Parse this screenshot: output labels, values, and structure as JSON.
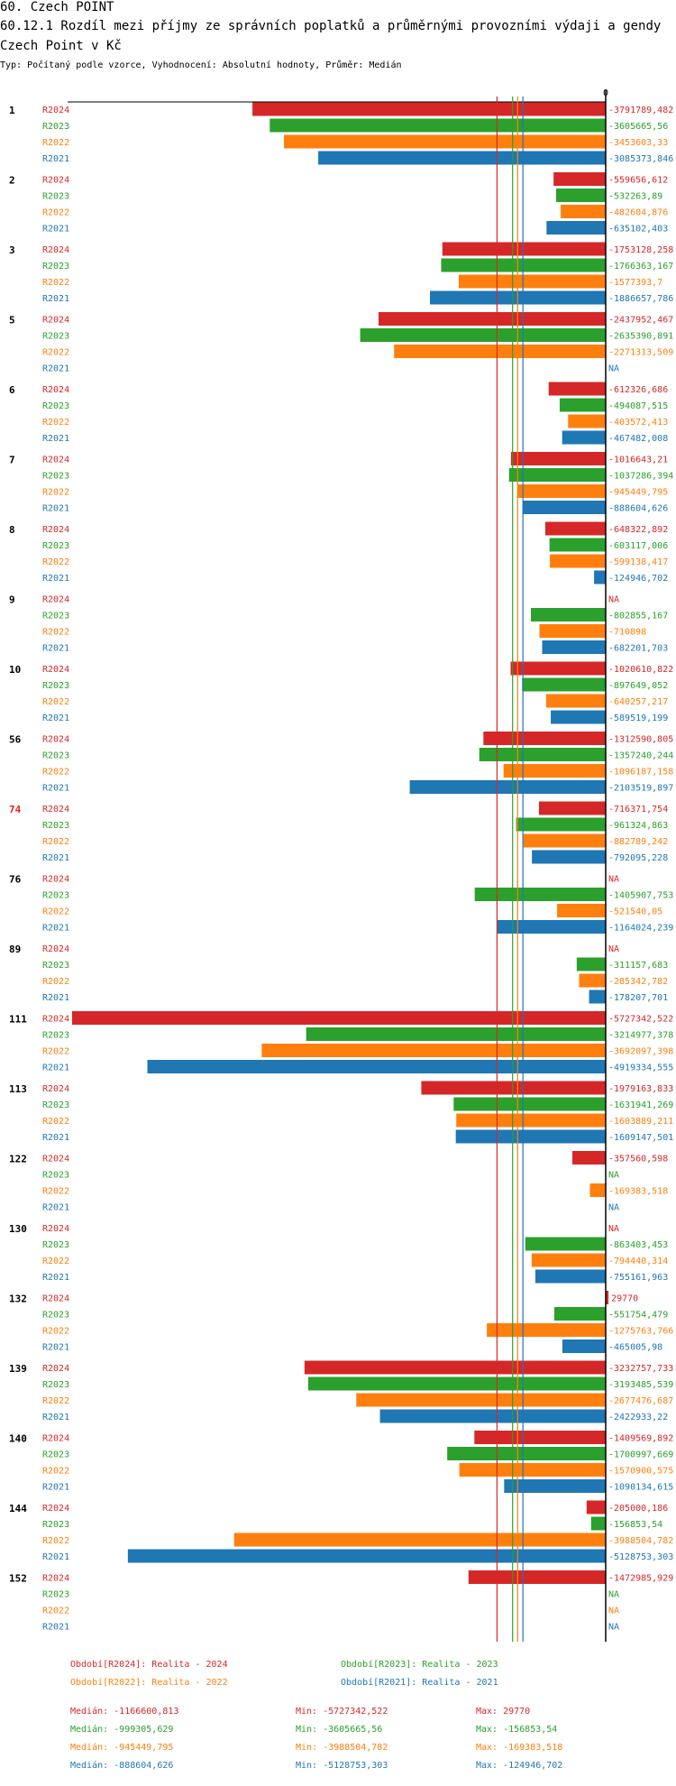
{
  "header": {
    "title": "60. Czech POINT",
    "subtitle": "60.12.1 Rozdíl mezi příjmy ze správních poplatků a průměrnými provozními výdaji a gendy Czech Point v Kč",
    "type_line": "Typ: Počítaný podle vzorce, Vyhodnocení: Absolutní hodnoty, Průměr: Medián"
  },
  "colors": {
    "R2024": "#d62728",
    "R2023": "#2ca02c",
    "R2022": "#ff7f0e",
    "R2021": "#1f77b4",
    "highlight": "#e6261f"
  },
  "chart_data": {
    "type": "bar",
    "orientation": "horizontal",
    "title": "60.12.1 Rozdíl mezi příjmy ze správních poplatků a průměrnými provozními výdaji a gendy Czech Point v Kč",
    "zero_label": "0",
    "xlim": [
      -5727342.522,
      0
    ],
    "series_names": [
      "R2024",
      "R2023",
      "R2022",
      "R2021"
    ],
    "groups": [
      {
        "id": "1",
        "highlight": false,
        "rows": [
          {
            "series": "R2024",
            "value": -3791789.482,
            "label": "-3791789,482"
          },
          {
            "series": "R2023",
            "value": -3605665.56,
            "label": "-3605665,56"
          },
          {
            "series": "R2022",
            "value": -3453603.33,
            "label": "-3453603,33"
          },
          {
            "series": "R2021",
            "value": -3085373.846,
            "label": "-3085373,846"
          }
        ]
      },
      {
        "id": "2",
        "highlight": false,
        "rows": [
          {
            "series": "R2024",
            "value": -559656.612,
            "label": "-559656,612"
          },
          {
            "series": "R2023",
            "value": -532263.89,
            "label": "-532263,89"
          },
          {
            "series": "R2022",
            "value": -482604.876,
            "label": "-482604,876"
          },
          {
            "series": "R2021",
            "value": -635102.403,
            "label": "-635102,403"
          }
        ]
      },
      {
        "id": "3",
        "highlight": false,
        "rows": [
          {
            "series": "R2024",
            "value": -1753128.258,
            "label": "-1753128,258"
          },
          {
            "series": "R2023",
            "value": -1766363.167,
            "label": "-1766363,167"
          },
          {
            "series": "R2022",
            "value": -1577393.7,
            "label": "-1577393,7"
          },
          {
            "series": "R2021",
            "value": -1886657.786,
            "label": "-1886657,786"
          }
        ]
      },
      {
        "id": "5",
        "highlight": false,
        "rows": [
          {
            "series": "R2024",
            "value": -2437952.467,
            "label": "-2437952,467"
          },
          {
            "series": "R2023",
            "value": -2635390.891,
            "label": "-2635390,891"
          },
          {
            "series": "R2022",
            "value": -2271313.509,
            "label": "-2271313,509"
          },
          {
            "series": "R2021",
            "value": null,
            "label": "NA"
          }
        ]
      },
      {
        "id": "6",
        "highlight": false,
        "rows": [
          {
            "series": "R2024",
            "value": -612326.686,
            "label": "-612326,686"
          },
          {
            "series": "R2023",
            "value": -494087.515,
            "label": "-494087,515"
          },
          {
            "series": "R2022",
            "value": -403572.413,
            "label": "-403572,413"
          },
          {
            "series": "R2021",
            "value": -467482.008,
            "label": "-467482,008"
          }
        ]
      },
      {
        "id": "7",
        "highlight": false,
        "rows": [
          {
            "series": "R2024",
            "value": -1016643.21,
            "label": "-1016643,21"
          },
          {
            "series": "R2023",
            "value": -1037286.394,
            "label": "-1037286,394"
          },
          {
            "series": "R2022",
            "value": -945449.795,
            "label": "-945449,795"
          },
          {
            "series": "R2021",
            "value": -888604.626,
            "label": "-888604,626"
          }
        ]
      },
      {
        "id": "8",
        "highlight": false,
        "rows": [
          {
            "series": "R2024",
            "value": -648322.892,
            "label": "-648322,892"
          },
          {
            "series": "R2023",
            "value": -603117.006,
            "label": "-603117,006"
          },
          {
            "series": "R2022",
            "value": -599138.417,
            "label": "-599138,417"
          },
          {
            "series": "R2021",
            "value": -124946.702,
            "label": "-124946,702"
          }
        ]
      },
      {
        "id": "9",
        "highlight": false,
        "rows": [
          {
            "series": "R2024",
            "value": null,
            "label": "NA"
          },
          {
            "series": "R2023",
            "value": -802855.167,
            "label": "-802855,167"
          },
          {
            "series": "R2022",
            "value": -710898,
            "label": "-710898"
          },
          {
            "series": "R2021",
            "value": -682201.703,
            "label": "-682201,703"
          }
        ]
      },
      {
        "id": "10",
        "highlight": false,
        "rows": [
          {
            "series": "R2024",
            "value": -1020610.822,
            "label": "-1020610,822"
          },
          {
            "series": "R2023",
            "value": -897649.052,
            "label": "-897649,052"
          },
          {
            "series": "R2022",
            "value": -640257.217,
            "label": "-640257,217"
          },
          {
            "series": "R2021",
            "value": -589519.199,
            "label": "-589519,199"
          }
        ]
      },
      {
        "id": "56",
        "highlight": false,
        "rows": [
          {
            "series": "R2024",
            "value": -1312590.805,
            "label": "-1312590,805"
          },
          {
            "series": "R2023",
            "value": -1357240.244,
            "label": "-1357240,244"
          },
          {
            "series": "R2022",
            "value": -1096187.158,
            "label": "-1096187,158"
          },
          {
            "series": "R2021",
            "value": -2103519.897,
            "label": "-2103519,897"
          }
        ]
      },
      {
        "id": "74",
        "highlight": true,
        "rows": [
          {
            "series": "R2024",
            "value": -716371.754,
            "label": "-716371,754"
          },
          {
            "series": "R2023",
            "value": -961324.863,
            "label": "-961324,863"
          },
          {
            "series": "R2022",
            "value": -882789.242,
            "label": "-882789,242"
          },
          {
            "series": "R2021",
            "value": -792095.228,
            "label": "-792095,228"
          }
        ]
      },
      {
        "id": "76",
        "highlight": false,
        "rows": [
          {
            "series": "R2024",
            "value": null,
            "label": "NA"
          },
          {
            "series": "R2023",
            "value": -1405907.753,
            "label": "-1405907,753"
          },
          {
            "series": "R2022",
            "value": -521540.05,
            "label": "-521540,05"
          },
          {
            "series": "R2021",
            "value": -1164024.239,
            "label": "-1164024,239"
          }
        ]
      },
      {
        "id": "89",
        "highlight": false,
        "rows": [
          {
            "series": "R2024",
            "value": null,
            "label": "NA"
          },
          {
            "series": "R2023",
            "value": -311157.683,
            "label": "-311157,683"
          },
          {
            "series": "R2022",
            "value": -285342.782,
            "label": "-285342,782"
          },
          {
            "series": "R2021",
            "value": -178207.701,
            "label": "-178207,701"
          }
        ]
      },
      {
        "id": "111",
        "highlight": false,
        "rows": [
          {
            "series": "R2024",
            "value": -5727342.522,
            "label": "-5727342,522"
          },
          {
            "series": "R2023",
            "value": -3214977.378,
            "label": "-3214977,378"
          },
          {
            "series": "R2022",
            "value": -3692097.398,
            "label": "-3692097,398"
          },
          {
            "series": "R2021",
            "value": -4919334.555,
            "label": "-4919334,555"
          }
        ]
      },
      {
        "id": "113",
        "highlight": false,
        "rows": [
          {
            "series": "R2024",
            "value": -1979163.833,
            "label": "-1979163,833"
          },
          {
            "series": "R2023",
            "value": -1631941.269,
            "label": "-1631941,269"
          },
          {
            "series": "R2022",
            "value": -1603889.211,
            "label": "-1603889,211"
          },
          {
            "series": "R2021",
            "value": -1609147.501,
            "label": "-1609147,501"
          }
        ]
      },
      {
        "id": "122",
        "highlight": false,
        "rows": [
          {
            "series": "R2024",
            "value": -357560.598,
            "label": "-357560,598"
          },
          {
            "series": "R2023",
            "value": null,
            "label": "NA"
          },
          {
            "series": "R2022",
            "value": -169383.518,
            "label": "-169383,518"
          },
          {
            "series": "R2021",
            "value": null,
            "label": "NA"
          }
        ]
      },
      {
        "id": "130",
        "highlight": false,
        "rows": [
          {
            "series": "R2024",
            "value": null,
            "label": "NA"
          },
          {
            "series": "R2023",
            "value": -863403.453,
            "label": "-863403,453"
          },
          {
            "series": "R2022",
            "value": -794440.314,
            "label": "-794440,314"
          },
          {
            "series": "R2021",
            "value": -755161.963,
            "label": "-755161,963"
          }
        ]
      },
      {
        "id": "132",
        "highlight": false,
        "rows": [
          {
            "series": "R2024",
            "value": 29770,
            "label": "29770"
          },
          {
            "series": "R2023",
            "value": -551754.479,
            "label": "-551754,479"
          },
          {
            "series": "R2022",
            "value": -1275763.766,
            "label": "-1275763,766"
          },
          {
            "series": "R2021",
            "value": -465005.98,
            "label": "-465005,98"
          }
        ]
      },
      {
        "id": "139",
        "highlight": false,
        "rows": [
          {
            "series": "R2024",
            "value": -3232757.733,
            "label": "-3232757,733"
          },
          {
            "series": "R2023",
            "value": -3193485.539,
            "label": "-3193485,539"
          },
          {
            "series": "R2022",
            "value": -2677476.687,
            "label": "-2677476,687"
          },
          {
            "series": "R2021",
            "value": -2422933.22,
            "label": "-2422933,22"
          }
        ]
      },
      {
        "id": "140",
        "highlight": false,
        "rows": [
          {
            "series": "R2024",
            "value": -1409569.892,
            "label": "-1409569,892"
          },
          {
            "series": "R2023",
            "value": -1700997.669,
            "label": "-1700997,669"
          },
          {
            "series": "R2022",
            "value": -1570900.575,
            "label": "-1570900,575"
          },
          {
            "series": "R2021",
            "value": -1090134.615,
            "label": "-1090134,615"
          }
        ]
      },
      {
        "id": "144",
        "highlight": false,
        "rows": [
          {
            "series": "R2024",
            "value": -205000.186,
            "label": "-205000,186"
          },
          {
            "series": "R2023",
            "value": -156853.54,
            "label": "-156853,54"
          },
          {
            "series": "R2022",
            "value": -3988504.782,
            "label": "-3988504,782"
          },
          {
            "series": "R2021",
            "value": -5128753.303,
            "label": "-5128753,303"
          }
        ]
      },
      {
        "id": "152",
        "highlight": false,
        "rows": [
          {
            "series": "R2024",
            "value": -1472985.929,
            "label": "-1472985,929"
          },
          {
            "series": "R2023",
            "value": null,
            "label": "NA"
          },
          {
            "series": "R2022",
            "value": null,
            "label": "NA"
          },
          {
            "series": "R2021",
            "value": null,
            "label": "NA"
          }
        ]
      }
    ],
    "median_lines": [
      {
        "series": "R2024",
        "value": -1166600.813
      },
      {
        "series": "R2023",
        "value": -999305.629
      },
      {
        "series": "R2022",
        "value": -945449.795
      },
      {
        "series": "R2021",
        "value": -888604.626
      }
    ]
  },
  "legend": {
    "r2024": "Období[R2024]: Realita - 2024",
    "r2023": "Období[R2023]: Realita - 2023",
    "r2022": "Období[R2022]: Realita - 2022",
    "r2021": "Období[R2021]: Realita - 2021"
  },
  "stats": {
    "r2024": {
      "median": "Medián: -1166600,813",
      "min": "Min: -5727342,522",
      "max": "Max: 29770"
    },
    "r2023": {
      "median": "Medián: -999305,629",
      "min": "Min: -3605665,56",
      "max": "Max: -156853,54"
    },
    "r2022": {
      "median": "Medián: -945449,795",
      "min": "Min: -3988504,782",
      "max": "Max: -169383,518"
    },
    "r2021": {
      "median": "Medián: -888604,626",
      "min": "Min: -5128753,303",
      "max": "Max: -124946,702"
    }
  }
}
